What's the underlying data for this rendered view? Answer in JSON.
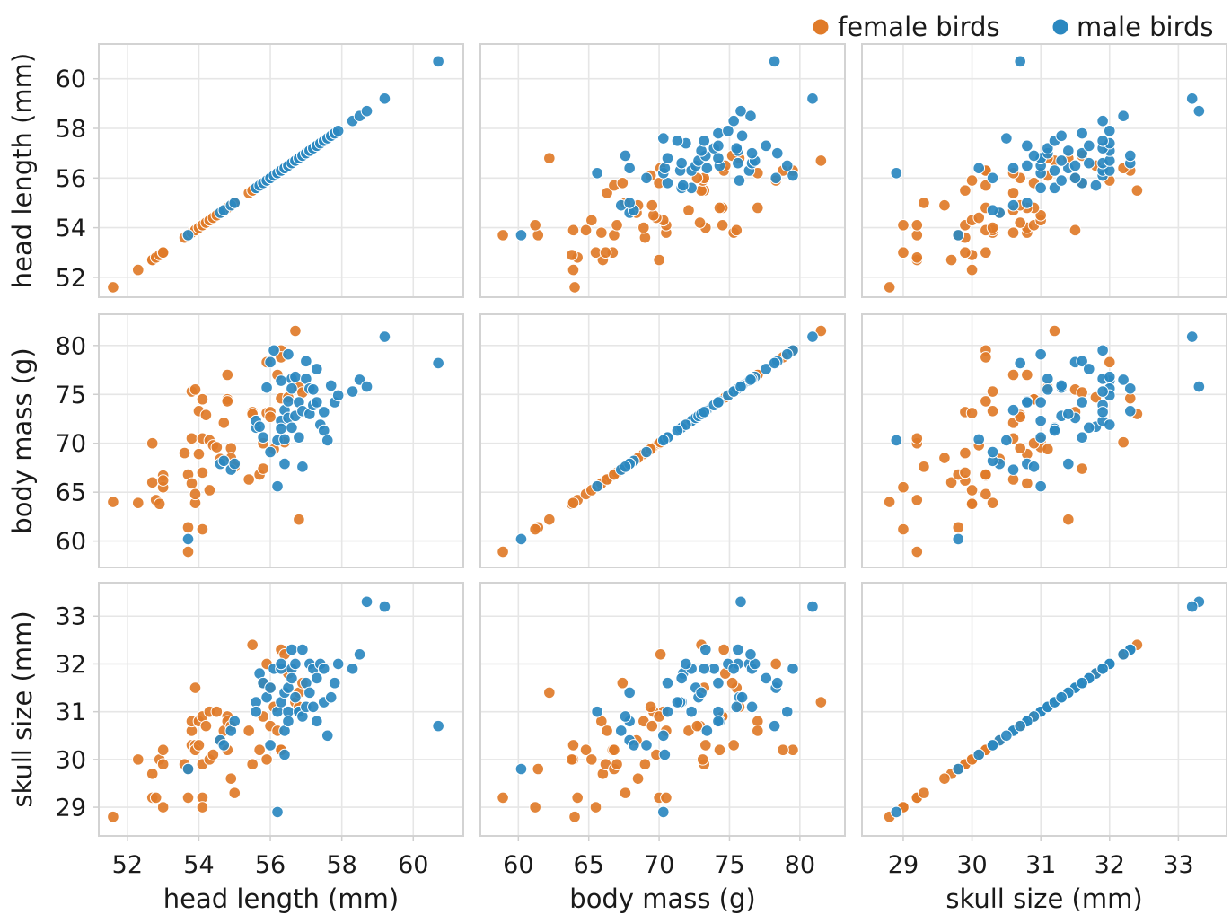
{
  "chart_data": {
    "type": "scatter",
    "layout": "scatterplot-matrix",
    "variables": [
      {
        "key": "head",
        "label": "head length (mm)",
        "range": [
          51.2,
          61.4
        ],
        "ticks": [
          52,
          54,
          56,
          58,
          60
        ]
      },
      {
        "key": "mass",
        "label": "body mass (g)",
        "range": [
          57.3,
          83.2
        ],
        "ticks": [
          60,
          65,
          70,
          75,
          80
        ]
      },
      {
        "key": "skull",
        "label": "skull size (mm)",
        "range": [
          28.4,
          33.7
        ],
        "ticks": [
          29,
          30,
          31,
          32,
          33
        ]
      }
    ],
    "grid": true,
    "legend_position": "top-right",
    "series": [
      {
        "name": "female birds",
        "color": "#e07b29",
        "points": [
          [
            51.6,
            64.0,
            28.8
          ],
          [
            52.3,
            63.9,
            30.0
          ],
          [
            52.7,
            66.0,
            29.7
          ],
          [
            52.7,
            70.0,
            29.2
          ],
          [
            52.8,
            64.2,
            29.2
          ],
          [
            52.9,
            63.8,
            30.0
          ],
          [
            53.0,
            66.7,
            30.2
          ],
          [
            53.0,
            65.5,
            29.0
          ],
          [
            53.0,
            66.2,
            29.9
          ],
          [
            53.6,
            69.0,
            29.9
          ],
          [
            53.7,
            66.8,
            29.8
          ],
          [
            53.7,
            58.9,
            29.2
          ],
          [
            53.7,
            61.4,
            29.8
          ],
          [
            53.8,
            70.5,
            30.6
          ],
          [
            53.8,
            75.3,
            30.3
          ],
          [
            53.8,
            65.9,
            30.8
          ],
          [
            53.9,
            63.9,
            30.3
          ],
          [
            53.9,
            75.5,
            31.5
          ],
          [
            53.9,
            64.8,
            30.2
          ],
          [
            54.0,
            68.9,
            30.8
          ],
          [
            54.0,
            73.3,
            30.3
          ],
          [
            54.1,
            74.5,
            30.9
          ],
          [
            54.1,
            70.5,
            29.2
          ],
          [
            54.1,
            61.2,
            29.0
          ],
          [
            54.1,
            67.0,
            29.9
          ],
          [
            54.2,
            72.9,
            30.7
          ],
          [
            54.3,
            65.2,
            30.0
          ],
          [
            54.3,
            70.3,
            31.0
          ],
          [
            54.4,
            69.8,
            30.1
          ],
          [
            54.5,
            69.6,
            31.0
          ],
          [
            54.6,
            68.4,
            30.4
          ],
          [
            54.7,
            72.1,
            30.6
          ],
          [
            54.8,
            74.5,
            30.9
          ],
          [
            54.8,
            77.0,
            30.8
          ],
          [
            54.8,
            74.3,
            30.2
          ],
          [
            54.9,
            69.5,
            30.7
          ],
          [
            54.9,
            68.5,
            29.6
          ],
          [
            55.0,
            67.6,
            29.3
          ],
          [
            55.4,
            66.3,
            30.6
          ],
          [
            55.5,
            73.2,
            29.9
          ],
          [
            55.5,
            73.0,
            32.4
          ],
          [
            55.7,
            66.8,
            30.2
          ],
          [
            55.8,
            67.4,
            31.6
          ],
          [
            55.8,
            70.0,
            30.9
          ],
          [
            55.9,
            78.3,
            32.0
          ],
          [
            55.9,
            73.1,
            30.0
          ],
          [
            56.0,
            73.2,
            31.5
          ],
          [
            56.0,
            72.7,
            30.7
          ],
          [
            56.1,
            69.4,
            31.1
          ],
          [
            56.2,
            77.0,
            30.6
          ],
          [
            56.3,
            74.6,
            32.3
          ],
          [
            56.3,
            79.5,
            30.2
          ],
          [
            56.3,
            78.8,
            30.2
          ],
          [
            56.4,
            70.1,
            32.2
          ],
          [
            56.5,
            74.7,
            31.8
          ],
          [
            56.7,
            81.5,
            31.2
          ],
          [
            56.8,
            62.2,
            31.4
          ],
          [
            56.8,
            75.7,
            31.1
          ],
          [
            56.9,
            75.2,
            31.6
          ]
        ]
      },
      {
        "name": "male birds",
        "color": "#2b88c0",
        "points": [
          [
            53.7,
            60.2,
            29.8
          ],
          [
            54.6,
            67.9,
            30.4
          ],
          [
            54.7,
            68.2,
            30.3
          ],
          [
            54.9,
            67.3,
            30.6
          ],
          [
            55.0,
            67.9,
            30.8
          ],
          [
            55.6,
            71.6,
            31.2
          ],
          [
            55.6,
            72.3,
            31.0
          ],
          [
            55.7,
            71.7,
            31.8
          ],
          [
            55.8,
            70.6,
            31.6
          ],
          [
            55.9,
            75.7,
            31.3
          ],
          [
            56.0,
            69.1,
            30.3
          ],
          [
            56.0,
            78.3,
            31.5
          ],
          [
            56.1,
            79.5,
            31.9
          ],
          [
            56.2,
            70.3,
            28.9
          ],
          [
            56.2,
            65.6,
            31.0
          ],
          [
            56.3,
            72.3,
            31.9
          ],
          [
            56.3,
            76.4,
            32.0
          ],
          [
            56.3,
            71.5,
            31.2
          ],
          [
            56.4,
            73.4,
            30.6
          ],
          [
            56.4,
            70.4,
            30.1
          ],
          [
            56.4,
            67.9,
            31.4
          ],
          [
            56.5,
            79.1,
            31.0
          ],
          [
            56.5,
            74.3,
            30.8
          ],
          [
            56.5,
            72.6,
            31.5
          ],
          [
            56.6,
            76.6,
            31.9
          ],
          [
            56.6,
            75.6,
            32.3
          ],
          [
            56.6,
            71.6,
            31.7
          ],
          [
            56.7,
            76.8,
            32.0
          ],
          [
            56.7,
            72.8,
            31.3
          ],
          [
            56.8,
            74.2,
            31.0
          ],
          [
            56.8,
            70.6,
            31.0
          ],
          [
            56.9,
            73.3,
            32.3
          ],
          [
            56.9,
            67.6,
            30.9
          ],
          [
            57.0,
            78.4,
            31.6
          ],
          [
            57.0,
            76.6,
            31.1
          ],
          [
            57.1,
            75.6,
            32.0
          ],
          [
            57.1,
            73.0,
            31.4
          ],
          [
            57.2,
            73.9,
            31.9
          ],
          [
            57.2,
            75.5,
            31.1
          ],
          [
            57.3,
            77.6,
            31.7
          ],
          [
            57.3,
            74.2,
            30.8
          ],
          [
            57.4,
            71.9,
            32.0
          ],
          [
            57.5,
            73.2,
            31.9
          ],
          [
            57.5,
            71.3,
            31.2
          ],
          [
            57.6,
            70.3,
            30.5
          ],
          [
            57.7,
            75.9,
            31.3
          ],
          [
            57.8,
            74.2,
            31.6
          ],
          [
            57.9,
            74.9,
            32.0
          ],
          [
            58.3,
            75.3,
            31.9
          ],
          [
            58.5,
            76.5,
            32.2
          ],
          [
            58.7,
            75.8,
            33.3
          ],
          [
            59.2,
            80.9,
            33.2
          ],
          [
            60.7,
            78.2,
            30.7
          ]
        ]
      }
    ]
  }
}
